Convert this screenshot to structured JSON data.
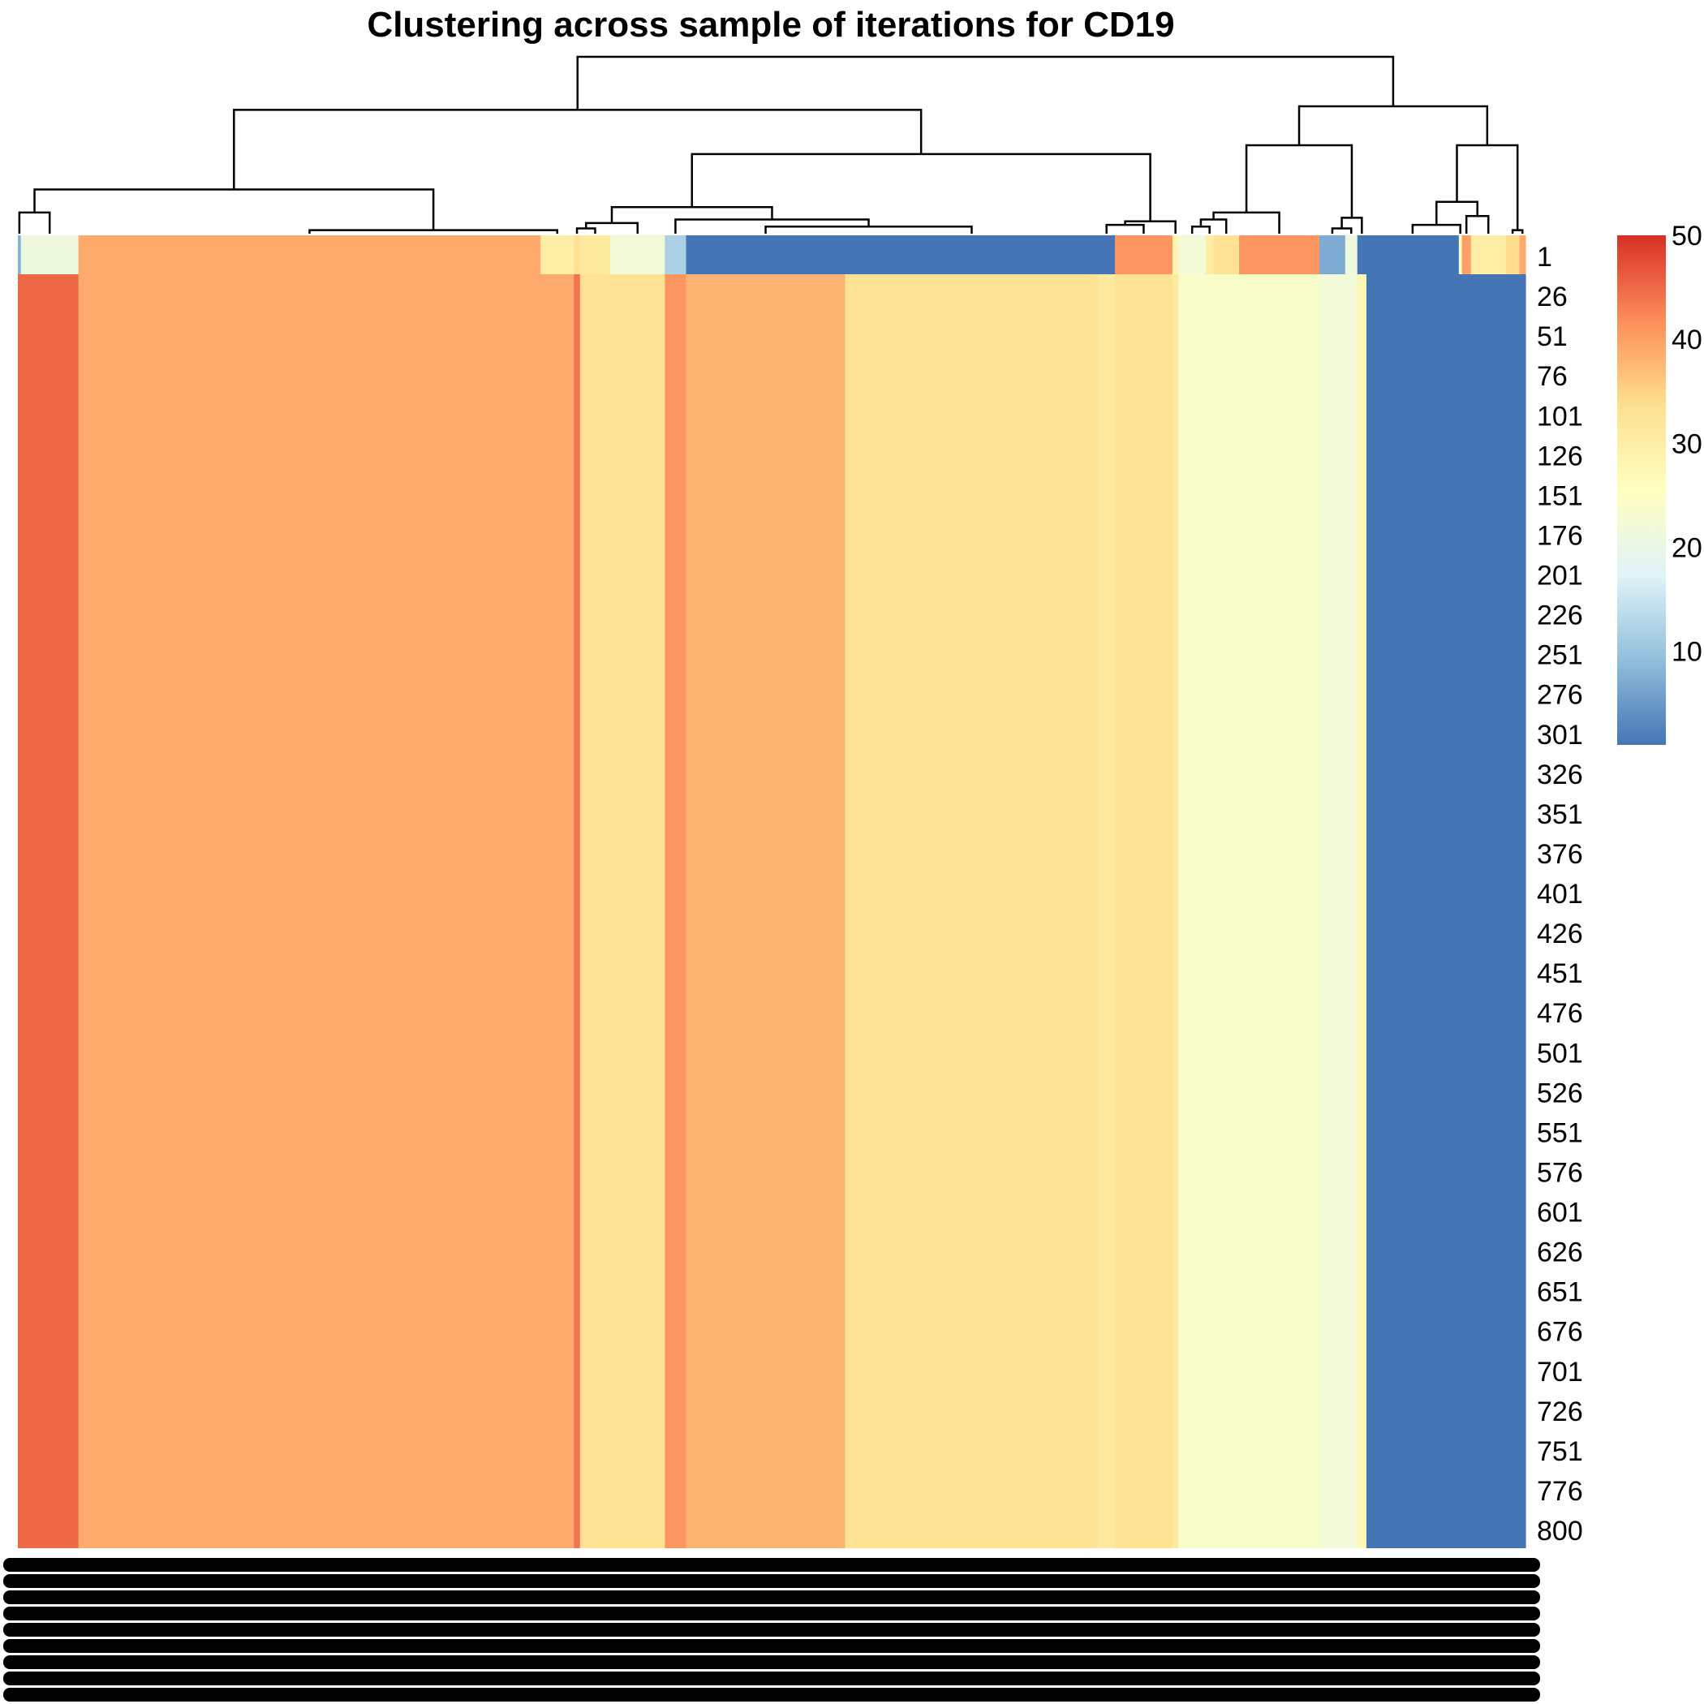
{
  "chart_data": {
    "type": "heatmap",
    "title": "Clustering across sample of iterations for CD19",
    "row_labels": [
      "1",
      "26",
      "51",
      "76",
      "101",
      "126",
      "151",
      "176",
      "201",
      "226",
      "251",
      "276",
      "301",
      "326",
      "351",
      "376",
      "401",
      "426",
      "451",
      "476",
      "501",
      "526",
      "551",
      "576",
      "601",
      "626",
      "651",
      "676",
      "701",
      "726",
      "751",
      "776",
      "800"
    ],
    "color_scale": {
      "min": 1,
      "max": 50,
      "ticks": [
        10,
        20,
        30,
        40,
        50
      ],
      "colors": [
        "#4575b4",
        "#91bfdb",
        "#e0f3f8",
        "#ffffbf",
        "#fee090",
        "#fc8d59",
        "#d73027"
      ]
    },
    "column_blocks": [
      {
        "width": 0.2,
        "top_value": 8,
        "body_value": 45
      },
      {
        "width": 3.8,
        "top_value": 21,
        "body_value": 45
      },
      {
        "width": 30.5,
        "top_value": 39,
        "body_value": 39
      },
      {
        "width": 2.2,
        "top_value": 30,
        "body_value": 39
      },
      {
        "width": 0.4,
        "top_value": 33,
        "body_value": 44
      },
      {
        "width": 2.0,
        "top_value": 31,
        "body_value": 33
      },
      {
        "width": 3.6,
        "top_value": 22,
        "body_value": 33
      },
      {
        "width": 1.4,
        "top_value": 12,
        "body_value": 41
      },
      {
        "width": 10.5,
        "top_value": 1,
        "body_value": 38
      },
      {
        "width": 16.7,
        "top_value": 1,
        "body_value": 33
      },
      {
        "width": 1.1,
        "top_value": 1,
        "body_value": 31
      },
      {
        "width": 3.8,
        "top_value": 41,
        "body_value": 33
      },
      {
        "width": 0.4,
        "top_value": 28,
        "body_value": 31
      },
      {
        "width": 1.8,
        "top_value": 22,
        "body_value": 24
      },
      {
        "width": 0.5,
        "top_value": 30,
        "body_value": 24
      },
      {
        "width": 1.7,
        "top_value": 33,
        "body_value": 24
      },
      {
        "width": 5.3,
        "top_value": 41,
        "body_value": 24
      },
      {
        "width": 1.7,
        "top_value": 7,
        "body_value": 22
      },
      {
        "width": 0.8,
        "top_value": 21,
        "body_value": 22
      },
      {
        "width": 0.6,
        "top_value": 1,
        "body_value": 27
      },
      {
        "width": 6.1,
        "top_value": 1,
        "body_value": 1
      },
      {
        "width": 0.2,
        "top_value": 25,
        "body_value": 1
      },
      {
        "width": 0.6,
        "top_value": 40,
        "body_value": 1
      },
      {
        "width": 2.3,
        "top_value": 30,
        "body_value": 1
      },
      {
        "width": 0.9,
        "top_value": 34,
        "body_value": 1
      },
      {
        "width": 0.4,
        "top_value": 39,
        "body_value": 1
      }
    ],
    "dendrogram_merges": [
      [
        -1,
        -2,
        0.12
      ],
      [
        -3,
        -4,
        0.02
      ],
      [
        -5,
        -6,
        0.03
      ],
      [
        3,
        -7,
        0.06
      ],
      [
        -9,
        -10,
        0.04
      ],
      [
        -8,
        5,
        0.08
      ],
      [
        1,
        2,
        0.25
      ],
      [
        4,
        6,
        0.15
      ],
      [
        -11,
        -12,
        0.05
      ],
      [
        9,
        -13,
        0.07
      ],
      [
        8,
        10,
        0.45
      ],
      [
        7,
        11,
        0.7
      ],
      [
        -14,
        -15,
        0.04
      ],
      [
        13,
        -16,
        0.08
      ],
      [
        14,
        -17,
        0.12
      ],
      [
        -18,
        -19,
        0.03
      ],
      [
        16,
        -20,
        0.09
      ],
      [
        15,
        17,
        0.5
      ],
      [
        -21,
        -22,
        0.05
      ],
      [
        -23,
        -24,
        0.1
      ],
      [
        19,
        20,
        0.18
      ],
      [
        -25,
        -26,
        0.02
      ],
      [
        21,
        22,
        0.5
      ],
      [
        18,
        23,
        0.72
      ],
      [
        12,
        24,
        1.0
      ]
    ]
  }
}
